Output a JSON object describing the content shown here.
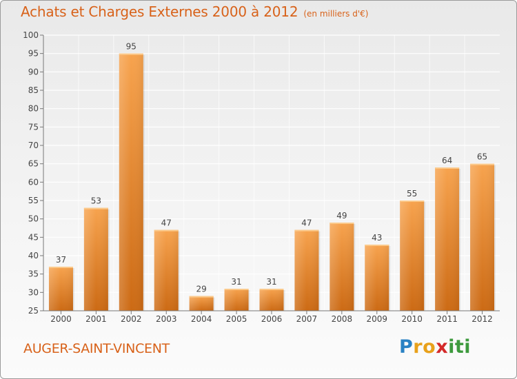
{
  "header": {
    "title": "Achats et Charges Externes 2000 à 2012",
    "unit": "(en milliers d'€)"
  },
  "footer": {
    "commune": "AUGER-SAINT-VINCENT",
    "logo": {
      "letters": [
        {
          "char": "P",
          "color": "#2a82c4"
        },
        {
          "char": "r",
          "color": "#e8a11b"
        },
        {
          "char": "o",
          "color": "#e8a11b"
        },
        {
          "char": "x",
          "color": "#d42a2a"
        },
        {
          "char": "i",
          "color": "#3d9a3d"
        },
        {
          "char": "t",
          "color": "#3d9a3d"
        },
        {
          "char": "i",
          "color": "#3d9a3d"
        }
      ]
    }
  },
  "chart_data": {
    "type": "bar",
    "title": "Achats et Charges Externes 2000 à 2012",
    "xlabel": "",
    "ylabel": "",
    "categories": [
      "2000",
      "2001",
      "2002",
      "2003",
      "2004",
      "2005",
      "2006",
      "2007",
      "2008",
      "2009",
      "2010",
      "2011",
      "2012"
    ],
    "values": [
      37,
      53,
      95,
      47,
      29,
      31,
      31,
      47,
      49,
      43,
      55,
      64,
      65
    ],
    "ylim": [
      25,
      100
    ],
    "yticks": [
      25,
      30,
      35,
      40,
      45,
      50,
      55,
      60,
      65,
      70,
      75,
      80,
      85,
      90,
      95,
      100
    ],
    "grid": true,
    "data_labels": true,
    "colors": {
      "bar_light": "#f7a34e",
      "bar_dark": "#cc6a14",
      "grid": "#ffffff",
      "axis": "#777777",
      "text": "#444444"
    }
  }
}
